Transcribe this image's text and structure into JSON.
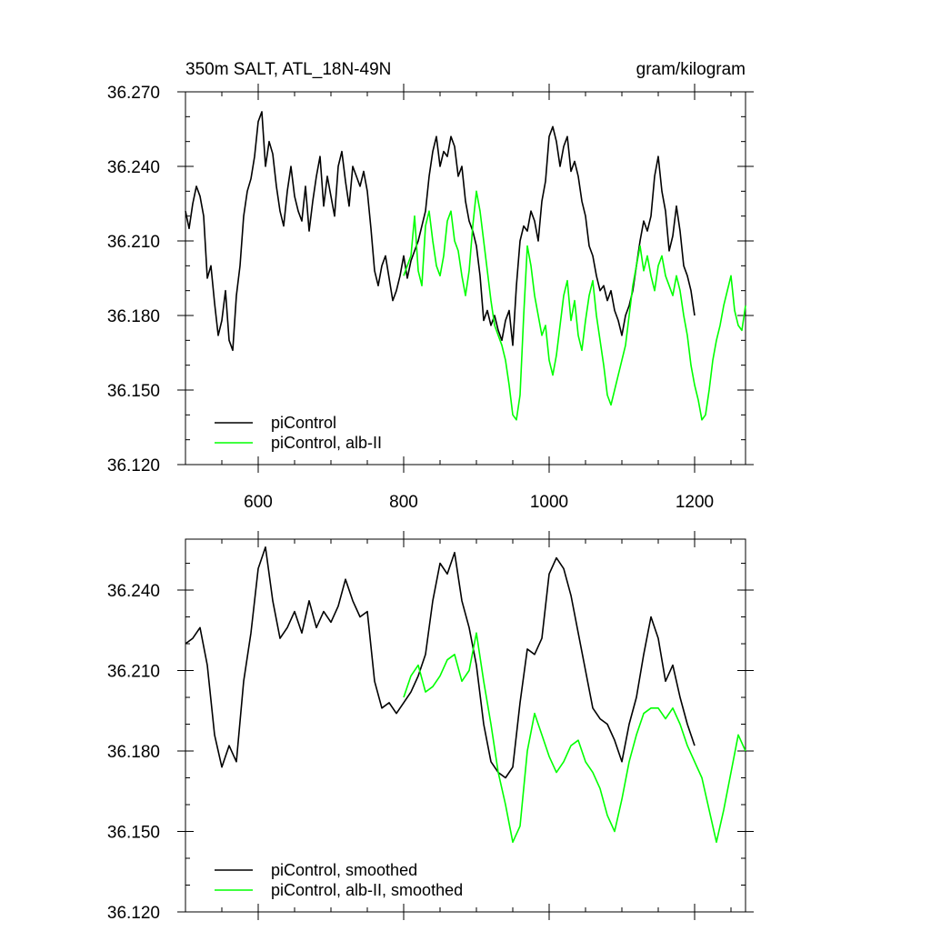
{
  "chart_data": [
    {
      "type": "line",
      "title": "350m SALT, ATL_18N-49N",
      "units_label": "gram/kilogram",
      "xlabel": "",
      "ylabel": "",
      "xlim": [
        500,
        1270
      ],
      "ylim": [
        36.12,
        36.27
      ],
      "x_ticks": [
        600,
        800,
        1000,
        1200
      ],
      "y_ticks": [
        "36.120",
        "36.150",
        "36.180",
        "36.210",
        "36.240",
        "36.270"
      ],
      "legend": {
        "position": "bottom-left",
        "entries": [
          "piControl",
          "piControl, alb-II"
        ]
      },
      "series": [
        {
          "name": "piControl",
          "color": "#000000",
          "x": [
            500,
            505,
            510,
            515,
            520,
            525,
            530,
            535,
            540,
            545,
            550,
            555,
            560,
            565,
            570,
            575,
            580,
            585,
            590,
            595,
            600,
            605,
            610,
            615,
            620,
            625,
            630,
            635,
            640,
            645,
            650,
            655,
            660,
            665,
            670,
            675,
            680,
            685,
            690,
            695,
            700,
            705,
            710,
            715,
            720,
            725,
            730,
            735,
            740,
            745,
            750,
            755,
            760,
            765,
            770,
            775,
            780,
            785,
            790,
            795,
            800,
            805,
            810,
            815,
            820,
            825,
            830,
            835,
            840,
            845,
            850,
            855,
            860,
            865,
            870,
            875,
            880,
            885,
            890,
            895,
            900,
            905,
            910,
            915,
            920,
            925,
            930,
            935,
            940,
            945,
            950,
            955,
            960,
            965,
            970,
            975,
            980,
            985,
            990,
            995,
            1000,
            1005,
            1010,
            1015,
            1020,
            1025,
            1030,
            1035,
            1040,
            1045,
            1050,
            1055,
            1060,
            1065,
            1070,
            1075,
            1080,
            1085,
            1090,
            1095,
            1100,
            1105,
            1110,
            1115,
            1120,
            1125,
            1130,
            1135,
            1140,
            1145,
            1150,
            1155,
            1160,
            1165,
            1170,
            1175,
            1180,
            1185,
            1190,
            1195,
            1200
          ],
          "values": [
            36.222,
            36.215,
            36.225,
            36.232,
            36.228,
            36.22,
            36.195,
            36.2,
            36.185,
            36.172,
            36.178,
            36.19,
            36.17,
            36.166,
            36.188,
            36.2,
            36.22,
            36.23,
            36.235,
            36.244,
            36.258,
            36.262,
            36.24,
            36.25,
            36.245,
            36.232,
            36.222,
            36.216,
            36.23,
            36.24,
            36.228,
            36.222,
            36.218,
            36.232,
            36.214,
            36.226,
            36.236,
            36.244,
            36.224,
            36.236,
            36.228,
            36.22,
            36.24,
            36.246,
            36.234,
            36.224,
            36.24,
            36.236,
            36.232,
            36.238,
            36.23,
            36.215,
            36.198,
            36.192,
            36.2,
            36.204,
            36.195,
            36.186,
            36.19,
            36.196,
            36.204,
            36.195,
            36.202,
            36.206,
            36.21,
            36.216,
            36.222,
            36.236,
            36.246,
            36.252,
            36.24,
            36.246,
            36.244,
            36.252,
            36.248,
            36.236,
            36.24,
            36.226,
            36.218,
            36.214,
            36.208,
            36.196,
            36.178,
            36.182,
            36.176,
            36.18,
            36.174,
            36.17,
            36.178,
            36.182,
            36.168,
            36.192,
            36.21,
            36.216,
            36.214,
            36.222,
            36.218,
            36.21,
            36.226,
            36.234,
            36.252,
            36.256,
            36.25,
            36.24,
            36.248,
            36.252,
            36.238,
            36.242,
            36.236,
            36.226,
            36.22,
            36.208,
            36.204,
            36.196,
            36.19,
            36.192,
            36.186,
            36.19,
            36.182,
            36.178,
            36.172,
            36.18,
            36.184,
            36.19,
            36.2,
            36.21,
            36.218,
            36.214,
            36.22,
            36.236,
            36.244,
            36.23,
            36.222,
            36.206,
            36.212,
            36.224,
            36.214,
            36.2,
            36.196,
            36.19,
            36.18
          ]
        },
        {
          "name": "piControl, alb-II",
          "color": "#00ff00",
          "x": [
            800,
            805,
            810,
            815,
            820,
            825,
            830,
            835,
            840,
            845,
            850,
            855,
            860,
            865,
            870,
            875,
            880,
            885,
            890,
            895,
            900,
            905,
            910,
            915,
            920,
            925,
            930,
            935,
            940,
            945,
            950,
            955,
            960,
            965,
            970,
            975,
            980,
            985,
            990,
            995,
            1000,
            1005,
            1010,
            1015,
            1020,
            1025,
            1030,
            1035,
            1040,
            1045,
            1050,
            1055,
            1060,
            1065,
            1070,
            1075,
            1080,
            1085,
            1090,
            1095,
            1100,
            1105,
            1110,
            1115,
            1120,
            1125,
            1130,
            1135,
            1140,
            1145,
            1150,
            1155,
            1160,
            1165,
            1170,
            1175,
            1180,
            1185,
            1190,
            1195,
            1200,
            1205,
            1210,
            1215,
            1220,
            1225,
            1230,
            1235,
            1240,
            1245,
            1250,
            1255,
            1260,
            1265,
            1270
          ],
          "values": [
            36.196,
            36.2,
            36.204,
            36.22,
            36.198,
            36.192,
            36.216,
            36.222,
            36.21,
            36.2,
            36.196,
            36.204,
            36.218,
            36.222,
            36.21,
            36.206,
            36.196,
            36.188,
            36.198,
            36.216,
            36.23,
            36.222,
            36.21,
            36.198,
            36.186,
            36.176,
            36.172,
            36.168,
            36.162,
            36.152,
            36.14,
            36.138,
            36.148,
            36.18,
            36.208,
            36.2,
            36.188,
            36.18,
            36.172,
            36.176,
            36.162,
            36.156,
            36.164,
            36.176,
            36.188,
            36.194,
            36.178,
            36.186,
            36.172,
            36.166,
            36.178,
            36.188,
            36.194,
            36.18,
            36.17,
            36.16,
            36.148,
            36.144,
            36.15,
            36.156,
            36.162,
            36.168,
            36.18,
            36.192,
            36.2,
            36.208,
            36.198,
            36.204,
            36.196,
            36.19,
            36.2,
            36.204,
            36.196,
            36.192,
            36.188,
            36.196,
            36.19,
            36.18,
            36.172,
            36.16,
            36.152,
            36.146,
            36.138,
            36.14,
            36.15,
            36.162,
            36.17,
            36.176,
            36.184,
            36.19,
            36.196,
            36.182,
            36.176,
            36.174,
            36.184
          ]
        }
      ]
    },
    {
      "type": "line",
      "title": "",
      "xlabel": "",
      "ylabel": "",
      "xlim": [
        500,
        1270
      ],
      "ylim": [
        36.12,
        36.259
      ],
      "x_ticks": [
        600,
        800,
        1000,
        1200
      ],
      "y_ticks": [
        "36.120",
        "36.150",
        "36.180",
        "36.210",
        "36.240"
      ],
      "legend": {
        "position": "bottom-left",
        "entries": [
          "piControl, smoothed",
          "piControl, alb-II, smoothed"
        ]
      },
      "series": [
        {
          "name": "piControl, smoothed",
          "color": "#000000",
          "x": [
            500,
            510,
            520,
            530,
            540,
            550,
            560,
            570,
            580,
            590,
            600,
            610,
            620,
            630,
            640,
            650,
            660,
            670,
            680,
            690,
            700,
            710,
            720,
            730,
            740,
            750,
            760,
            770,
            780,
            790,
            800,
            810,
            820,
            830,
            840,
            850,
            860,
            870,
            880,
            890,
            900,
            910,
            920,
            930,
            940,
            950,
            960,
            970,
            980,
            990,
            1000,
            1010,
            1020,
            1030,
            1040,
            1050,
            1060,
            1070,
            1080,
            1090,
            1100,
            1110,
            1120,
            1130,
            1140,
            1150,
            1160,
            1170,
            1180,
            1190,
            1200
          ],
          "values": [
            36.22,
            36.222,
            36.226,
            36.212,
            36.186,
            36.174,
            36.182,
            36.176,
            36.206,
            36.224,
            36.248,
            36.256,
            36.236,
            36.222,
            36.226,
            36.232,
            36.224,
            36.236,
            36.226,
            36.232,
            36.228,
            36.234,
            36.244,
            36.236,
            36.23,
            36.232,
            36.206,
            36.196,
            36.198,
            36.194,
            36.198,
            36.202,
            36.208,
            36.216,
            36.236,
            36.25,
            36.246,
            36.254,
            36.236,
            36.226,
            36.212,
            36.19,
            36.176,
            36.172,
            36.17,
            36.174,
            36.198,
            36.218,
            36.216,
            36.222,
            36.246,
            36.252,
            36.248,
            36.238,
            36.224,
            36.21,
            36.196,
            36.192,
            36.19,
            36.184,
            36.176,
            36.19,
            36.2,
            36.216,
            36.23,
            36.222,
            36.206,
            36.212,
            36.2,
            36.19,
            36.182
          ]
        },
        {
          "name": "piControl, alb-II, smoothed",
          "color": "#00ff00",
          "x": [
            800,
            810,
            820,
            830,
            840,
            850,
            860,
            870,
            880,
            890,
            900,
            910,
            920,
            930,
            940,
            950,
            960,
            970,
            980,
            990,
            1000,
            1010,
            1020,
            1030,
            1040,
            1050,
            1060,
            1070,
            1080,
            1090,
            1100,
            1110,
            1120,
            1130,
            1140,
            1150,
            1160,
            1170,
            1180,
            1190,
            1200,
            1210,
            1220,
            1230,
            1240,
            1250,
            1260,
            1270
          ],
          "values": [
            36.2,
            36.208,
            36.212,
            36.202,
            36.204,
            36.208,
            36.214,
            36.216,
            36.206,
            36.21,
            36.224,
            36.206,
            36.19,
            36.172,
            36.16,
            36.146,
            36.152,
            36.18,
            36.194,
            36.186,
            36.178,
            36.172,
            36.176,
            36.182,
            36.184,
            36.176,
            36.172,
            36.166,
            36.156,
            36.15,
            36.162,
            36.176,
            36.186,
            36.194,
            36.196,
            36.196,
            36.192,
            36.196,
            36.19,
            36.182,
            36.176,
            36.17,
            36.158,
            36.146,
            36.158,
            36.172,
            36.186,
            36.18
          ]
        }
      ]
    }
  ]
}
